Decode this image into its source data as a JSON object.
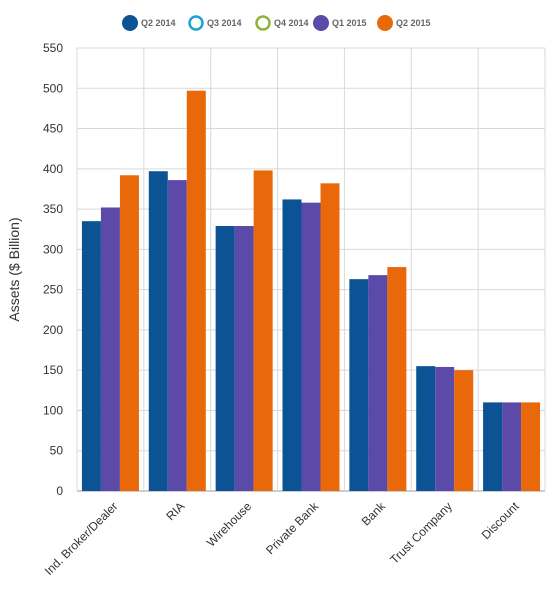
{
  "chart_data": {
    "type": "bar",
    "ylabel": "Assets ($ Billion)",
    "ylim": [
      0,
      550
    ],
    "yticks": [
      0,
      50,
      100,
      150,
      200,
      250,
      300,
      350,
      400,
      450,
      500,
      550
    ],
    "grid": true,
    "legend_position": "top-center",
    "categories": [
      "Ind. Broker/Dealer",
      "RIA",
      "Wirehouse",
      "Private Bank",
      "Bank",
      "Trust Company",
      "Discount"
    ],
    "series": [
      {
        "name": "Q2 2014",
        "color": "#0b5394",
        "legend_style": "filled",
        "values": [
          335,
          397,
          329,
          362,
          263,
          155,
          110
        ]
      },
      {
        "name": "Q3 2014",
        "color": "#1aa3d8",
        "legend_style": "hollow",
        "values": [
          null,
          null,
          null,
          null,
          null,
          null,
          null
        ]
      },
      {
        "name": "Q4 2014",
        "color": "#8db43a",
        "legend_style": "hollow",
        "values": [
          null,
          null,
          null,
          null,
          null,
          null,
          null
        ]
      },
      {
        "name": "Q1 2015",
        "color": "#5b4aa8",
        "legend_style": "filled",
        "values": [
          352,
          386,
          329,
          358,
          268,
          154,
          110
        ]
      },
      {
        "name": "Q2 2015",
        "color": "#e8680a",
        "legend_style": "filled",
        "values": [
          392,
          497,
          398,
          382,
          278,
          150,
          110
        ]
      }
    ]
  }
}
